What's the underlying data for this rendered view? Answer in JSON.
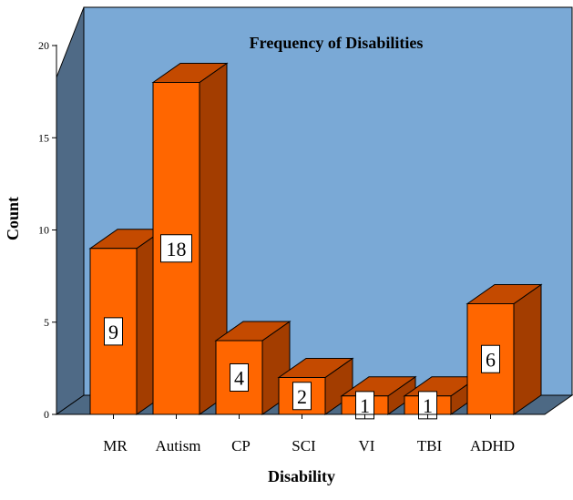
{
  "chart_data": {
    "type": "bar",
    "title": "Frequency of Disabilities",
    "xlabel": "Disability",
    "ylabel": "Count",
    "categories": [
      "MR",
      "Autism",
      "CP",
      "SCI",
      "VI",
      "TBI",
      "ADHD"
    ],
    "values": [
      9,
      18,
      4,
      2,
      1,
      1,
      6
    ],
    "data_labels": [
      "9",
      "18",
      "4",
      "2",
      "1",
      "1",
      "6"
    ],
    "ylim": [
      0,
      20
    ],
    "yticks": [
      0,
      5,
      10,
      15,
      20
    ],
    "ytick_labels": [
      "0",
      "5",
      "10",
      "15",
      "20"
    ],
    "grid": false,
    "legend": "none",
    "style": "3d-bar",
    "colors": {
      "plot_background": "#7aa9d6",
      "side_wall": "#4f6a86",
      "floor": "#4d6984",
      "bar_front": "#ff6600",
      "bar_side": "#a33d00",
      "bar_top": "#c44a00",
      "outline": "#000000",
      "label_box": "#ffffff"
    }
  }
}
